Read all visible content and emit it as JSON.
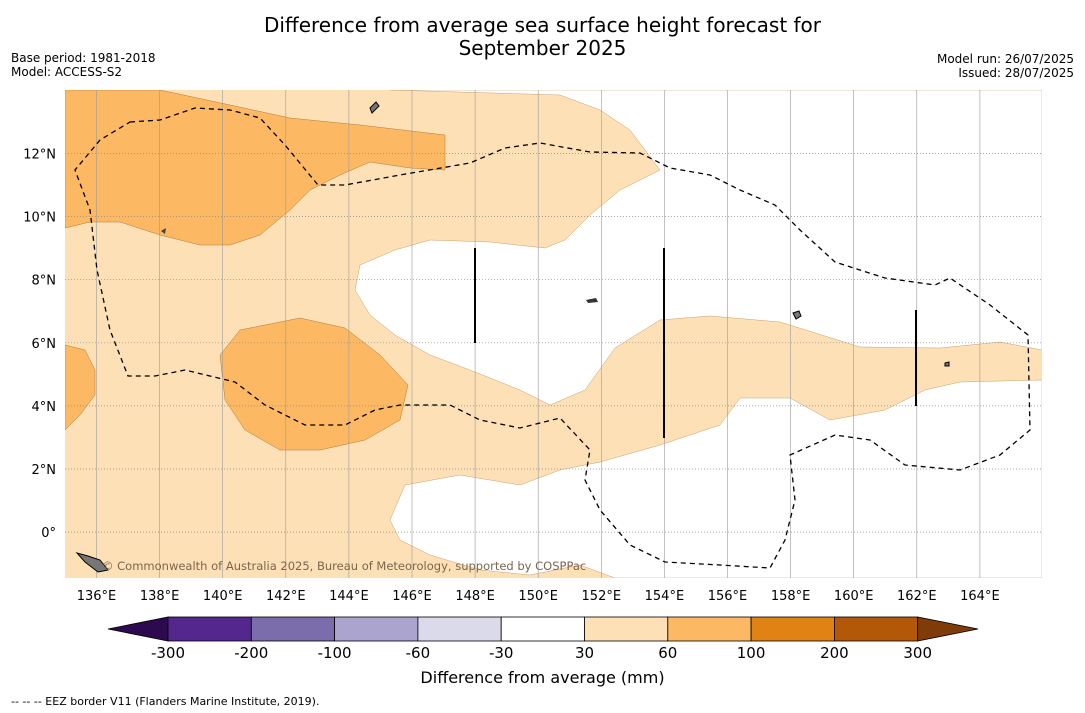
{
  "header": {
    "title_line1": "Difference from average sea surface height forecast for",
    "title_line2": "September 2025",
    "base_period": "Base period: 1981-2018",
    "model": "Model: ACCESS-S2",
    "model_run": "Model run: 26/07/2025",
    "issued": "Issued: 28/07/2025"
  },
  "map": {
    "lon_ticks": [
      "136°E",
      "138°E",
      "140°E",
      "142°E",
      "144°E",
      "146°E",
      "148°E",
      "150°E",
      "152°E",
      "154°E",
      "156°E",
      "158°E",
      "160°E",
      "162°E",
      "164°E"
    ],
    "lat_ticks": [
      "12°N",
      "10°N",
      "8°N",
      "6°N",
      "4°N",
      "2°N",
      "0°"
    ],
    "watermark": "© Commonwealth of Australia 2025, Bureau of Meteorology, supported by COSPPac"
  },
  "colorbar": {
    "ticks": [
      "-300",
      "-200",
      "-100",
      "-60",
      "-30",
      "30",
      "60",
      "100",
      "200",
      "300"
    ],
    "colors": [
      "#2d0a4f",
      "#54278f",
      "#7b6cab",
      "#aba4cf",
      "#dadaeb",
      "#ffffff",
      "#fee0b6",
      "#fdb863",
      "#e08214",
      "#b35806",
      "#7f3b08"
    ],
    "label": "Difference from average (mm)"
  },
  "footnote": "-- -- -- EEZ border V11 (Flanders Marine Institute, 2019)."
}
